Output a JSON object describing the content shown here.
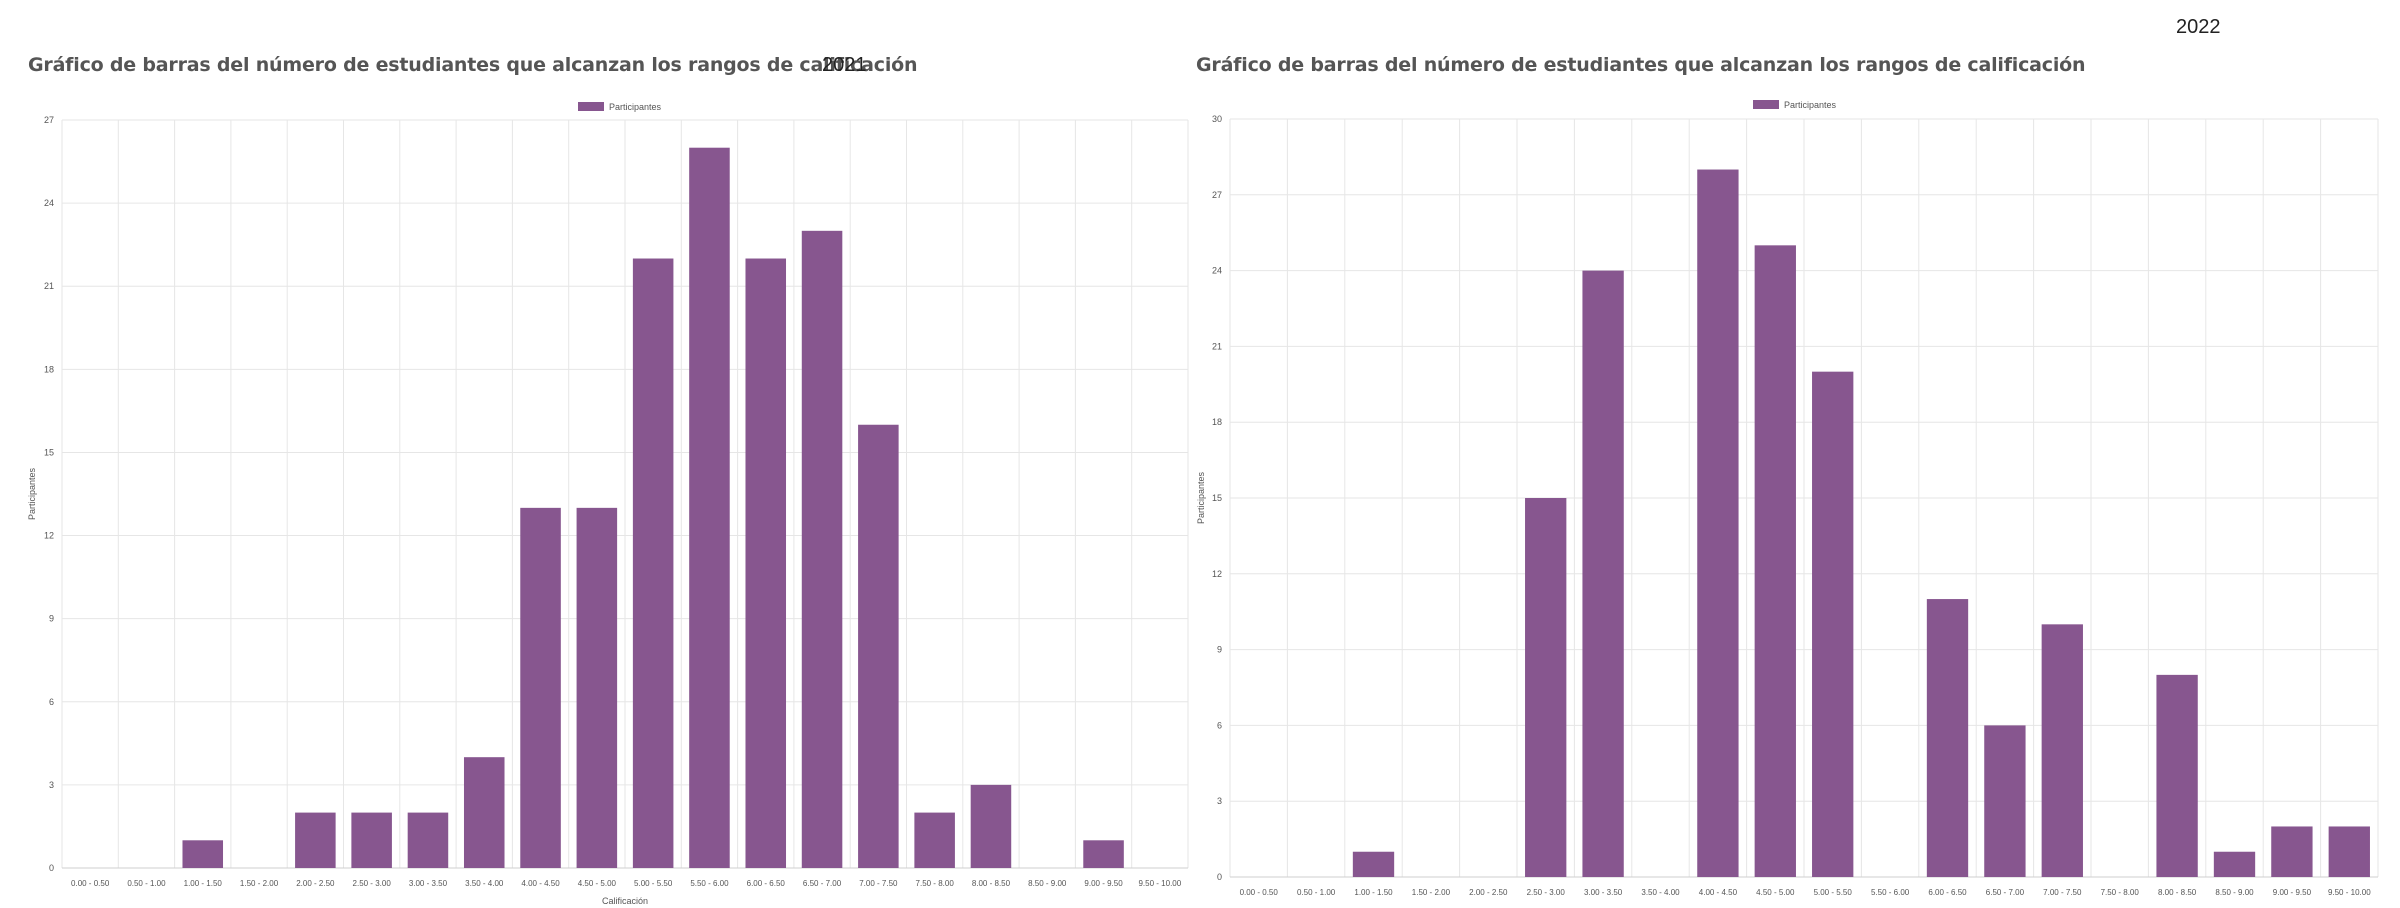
{
  "charts": [
    {
      "title": "Gráfico de barras del número de estudiantes que alcanzan los rangos de calificación",
      "year": "2021",
      "legend": "Participantes",
      "ylabel": "Participantes",
      "xlabel": "Calificación"
    },
    {
      "title": "Gráfico de barras del número de estudiantes que alcanzan los rangos de calificación",
      "year": "2022",
      "legend": "Participantes",
      "ylabel": "Participantes",
      "xlabel": ""
    }
  ],
  "colors": {
    "bar": "#87568f",
    "grid": "#e6e6e6",
    "axis": "#cfcfcf"
  },
  "chart_data": [
    {
      "type": "bar",
      "title": "Gráfico de barras del número de estudiantes que alcanzan los rangos de calificación",
      "xlabel": "Calificación",
      "ylabel": "Participantes",
      "legend": [
        "Participantes"
      ],
      "legend_position": "top-center",
      "grid": true,
      "ylim": [
        0,
        27
      ],
      "yticks": [
        0,
        3,
        6,
        9,
        12,
        15,
        18,
        21,
        24,
        27
      ],
      "categories": [
        "0.00 - 0.50",
        "0.50 - 1.00",
        "1.00 - 1.50",
        "1.50 - 2.00",
        "2.00 - 2.50",
        "2.50 - 3.00",
        "3.00 - 3.50",
        "3.50 - 4.00",
        "4.00 - 4.50",
        "4.50 - 5.00",
        "5.00 - 5.50",
        "5.50 - 6.00",
        "6.00 - 6.50",
        "6.50 - 7.00",
        "7.00 - 7.50",
        "7.50 - 8.00",
        "8.00 - 8.50",
        "8.50 - 9.00",
        "9.00 - 9.50",
        "9.50 - 10.00"
      ],
      "series": [
        {
          "name": "Participantes",
          "values": [
            0,
            0,
            1,
            0,
            2,
            2,
            2,
            4,
            13,
            13,
            22,
            26,
            22,
            23,
            16,
            2,
            3,
            0,
            1,
            0
          ]
        }
      ]
    },
    {
      "type": "bar",
      "title": "Gráfico de barras del número de estudiantes que alcanzan los rangos de calificación",
      "xlabel": "",
      "ylabel": "Participantes",
      "legend": [
        "Participantes"
      ],
      "legend_position": "top-center",
      "grid": true,
      "ylim": [
        0,
        30
      ],
      "yticks": [
        0,
        3,
        6,
        9,
        12,
        15,
        18,
        21,
        24,
        27,
        30
      ],
      "categories": [
        "0.00 - 0.50",
        "0.50 - 1.00",
        "1.00 - 1.50",
        "1.50 - 2.00",
        "2.00 - 2.50",
        "2.50 - 3.00",
        "3.00 - 3.50",
        "3.50 - 4.00",
        "4.00 - 4.50",
        "4.50 - 5.00",
        "5.00 - 5.50",
        "5.50 - 6.00",
        "6.00 - 6.50",
        "6.50 - 7.00",
        "7.00 - 7.50",
        "7.50 - 8.00",
        "8.00 - 8.50",
        "8.50 - 9.00",
        "9.00 - 9.50",
        "9.50 - 10.00"
      ],
      "series": [
        {
          "name": "Participantes",
          "values": [
            0,
            0,
            1,
            0,
            0,
            15,
            24,
            0,
            28,
            25,
            20,
            0,
            11,
            6,
            10,
            0,
            8,
            1,
            2,
            2
          ]
        }
      ]
    }
  ]
}
